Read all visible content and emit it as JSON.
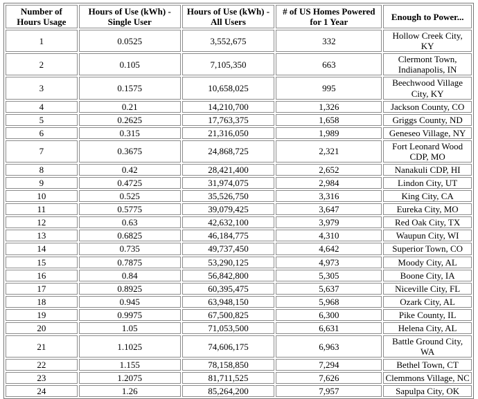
{
  "chart_data": {
    "type": "table",
    "title": "",
    "columns": [
      "Number of Hours Usage",
      "Hours of Use (kWh) - Single User",
      "Hours of Use (kWh) - All Users",
      "# of US Homes Powered for 1 Year",
      "Enough to Power..."
    ],
    "rows": [
      [
        "1",
        "0.0525",
        "3,552,675",
        "332",
        "Hollow Creek City, KY"
      ],
      [
        "2",
        "0.105",
        "7,105,350",
        "663",
        "Clermont Town, Indianapolis, IN"
      ],
      [
        "3",
        "0.1575",
        "10,658,025",
        "995",
        "Beechwood Village City, KY"
      ],
      [
        "4",
        "0.21",
        "14,210,700",
        "1,326",
        "Jackson County, CO"
      ],
      [
        "5",
        "0.2625",
        "17,763,375",
        "1,658",
        "Griggs County, ND"
      ],
      [
        "6",
        "0.315",
        "21,316,050",
        "1,989",
        "Geneseo Village, NY"
      ],
      [
        "7",
        "0.3675",
        "24,868,725",
        "2,321",
        "Fort Leonard Wood CDP, MO"
      ],
      [
        "8",
        "0.42",
        "28,421,400",
        "2,652",
        "Nanakuli CDP, HI"
      ],
      [
        "9",
        "0.4725",
        "31,974,075",
        "2,984",
        "Lindon City, UT"
      ],
      [
        "10",
        "0.525",
        "35,526,750",
        "3,316",
        "King City, CA"
      ],
      [
        "11",
        "0.5775",
        "39,079,425",
        "3,647",
        "Eureka City, MO"
      ],
      [
        "12",
        "0.63",
        "42,632,100",
        "3,979",
        "Red Oak City, TX"
      ],
      [
        "13",
        "0.6825",
        "46,184,775",
        "4,310",
        "Waupun City, WI"
      ],
      [
        "14",
        "0.735",
        "49,737,450",
        "4,642",
        "Superior Town, CO"
      ],
      [
        "15",
        "0.7875",
        "53,290,125",
        "4,973",
        "Moody City, AL"
      ],
      [
        "16",
        "0.84",
        "56,842,800",
        "5,305",
        "Boone City, IA"
      ],
      [
        "17",
        "0.8925",
        "60,395,475",
        "5,637",
        "Niceville City, FL"
      ],
      [
        "18",
        "0.945",
        "63,948,150",
        "5,968",
        "Ozark City, AL"
      ],
      [
        "19",
        "0.9975",
        "67,500,825",
        "6,300",
        "Pike County, IL"
      ],
      [
        "20",
        "1.05",
        "71,053,500",
        "6,631",
        "Helena City, AL"
      ],
      [
        "21",
        "1.1025",
        "74,606,175",
        "6,963",
        "Battle Ground City, WA"
      ],
      [
        "22",
        "1.155",
        "78,158,850",
        "7,294",
        "Bethel Town, CT"
      ],
      [
        "23",
        "1.2075",
        "81,711,525",
        "7,626",
        "Clemmons Village, NC"
      ],
      [
        "24",
        "1.26",
        "85,264,200",
        "7,957",
        "Sapulpa City, OK"
      ]
    ]
  },
  "colors": {
    "background": "#ffffff",
    "text": "#000000",
    "border_outer": "#767676",
    "border_cell": "#8a8a8a"
  }
}
